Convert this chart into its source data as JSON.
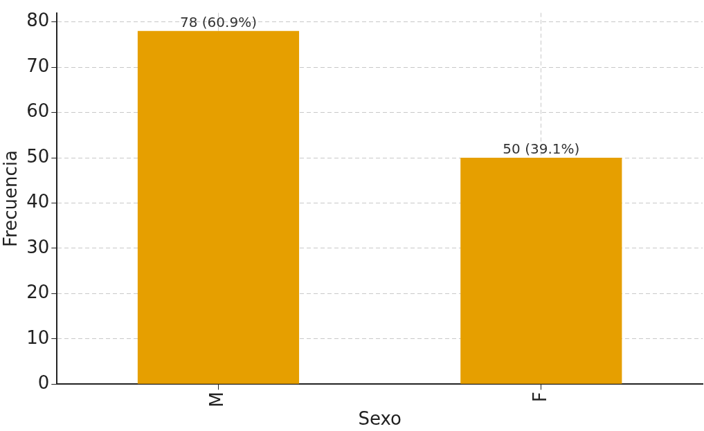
{
  "chart_data": {
    "type": "bar",
    "xlabel": "Sexo",
    "ylabel": "Frecuencia",
    "categories": [
      "M",
      "F"
    ],
    "values": [
      78,
      50
    ],
    "value_labels": [
      "78 (60.9%)",
      "50 (39.1%)"
    ],
    "color": "#e69f00",
    "ylim": [
      0,
      82
    ],
    "yticks": [
      0,
      10,
      20,
      30,
      40,
      50,
      60,
      70,
      80
    ],
    "grid": true
  }
}
